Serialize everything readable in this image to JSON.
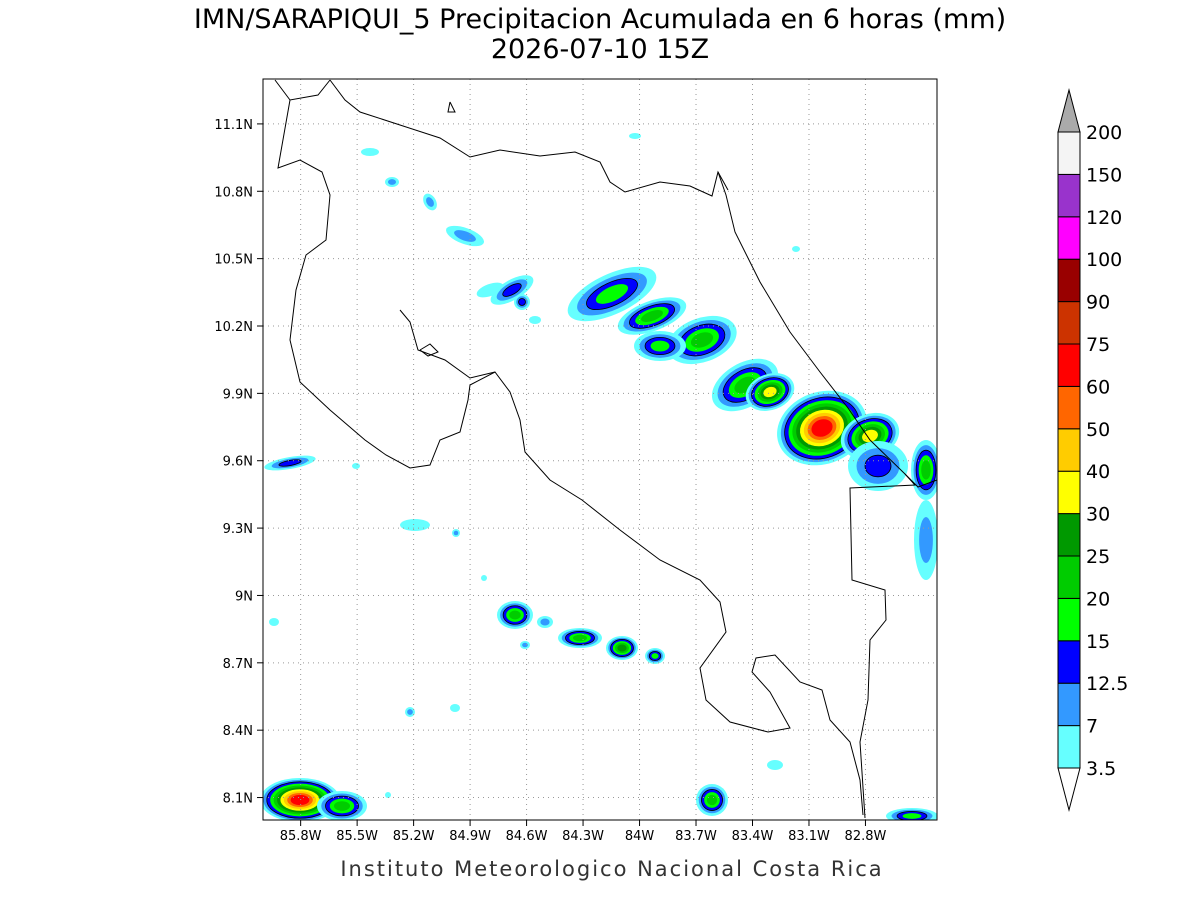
{
  "title": "IMN/SARAPIQUI_5 Precipitacion Acumulada en 6 horas (mm)",
  "subtitle": "2026-07-10 15Z",
  "map": {
    "lonlim": [
      -86.0,
      -82.42
    ],
    "latlim": [
      8.0,
      11.3
    ],
    "grid": true,
    "lon_ticks": [
      {
        "value": -85.8,
        "label": "85.8W"
      },
      {
        "value": -85.5,
        "label": "85.5W"
      },
      {
        "value": -85.2,
        "label": "85.2W"
      },
      {
        "value": -84.9,
        "label": "84.9W"
      },
      {
        "value": -84.6,
        "label": "84.6W"
      },
      {
        "value": -84.3,
        "label": "84.3W"
      },
      {
        "value": -84.0,
        "label": "84W"
      },
      {
        "value": -83.7,
        "label": "83.7W"
      },
      {
        "value": -83.4,
        "label": "83.4W"
      },
      {
        "value": -83.1,
        "label": "83.1W"
      },
      {
        "value": -82.8,
        "label": "82.8W"
      }
    ],
    "lat_ticks": [
      {
        "value": 8.1,
        "label": "8.1N"
      },
      {
        "value": 8.4,
        "label": "8.4N"
      },
      {
        "value": 8.7,
        "label": "8.7N"
      },
      {
        "value": 9.0,
        "label": "9N"
      },
      {
        "value": 9.3,
        "label": "9.3N"
      },
      {
        "value": 9.6,
        "label": "9.6N"
      },
      {
        "value": 9.9,
        "label": "9.9N"
      },
      {
        "value": 10.2,
        "label": "10.2N"
      },
      {
        "value": 10.5,
        "label": "10.5N"
      },
      {
        "value": 10.8,
        "label": "10.8N"
      },
      {
        "value": 11.1,
        "label": "11.1N"
      }
    ]
  },
  "legend": {
    "levels": [
      3.5,
      7,
      12.5,
      15,
      20,
      25,
      30,
      40,
      50,
      60,
      75,
      90,
      100,
      120,
      150,
      200
    ],
    "colors": [
      "#ffffff",
      "#66ffff",
      "#3399ff",
      "#0000ff",
      "#00ff00",
      "#00cc00",
      "#009900",
      "#ffff00",
      "#ffcc00",
      "#ff6600",
      "#ff0000",
      "#cc3300",
      "#990000",
      "#ff00ff",
      "#9933cc",
      "#f4f4f4",
      "#aaaaaa"
    ]
  },
  "credit": "Instituto Meteorologico Nacional Costa Rica"
}
